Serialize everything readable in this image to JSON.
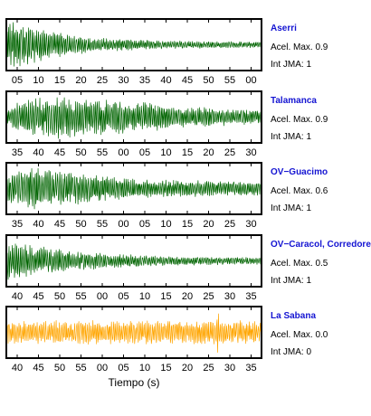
{
  "chart_data": {
    "type": "line",
    "xlabel": "Tiempo (s)",
    "grid": false,
    "panels": [
      {
        "station": "Aserri",
        "accel_text": "Acel. Max. 0.9",
        "int_text": "Int JMA: 1",
        "color": "#006400",
        "tick_labels": [
          "05",
          "10",
          "15",
          "20",
          "25",
          "30",
          "35",
          "40",
          "45",
          "50",
          "55",
          "00"
        ],
        "amplitude_profile": [
          [
            0.0,
            0.95
          ],
          [
            0.08,
            0.9
          ],
          [
            0.18,
            0.55
          ],
          [
            0.35,
            0.3
          ],
          [
            0.6,
            0.18
          ],
          [
            1.0,
            0.12
          ]
        ]
      },
      {
        "station": "Talamanca",
        "accel_text": "Acel. Max. 0.9",
        "int_text": "Int JMA: 1",
        "color": "#006400",
        "tick_labels": [
          "35",
          "40",
          "45",
          "50",
          "55",
          "00",
          "05",
          "10",
          "15",
          "20",
          "25",
          "30"
        ],
        "amplitude_profile": [
          [
            0.0,
            0.35
          ],
          [
            0.05,
            0.7
          ],
          [
            0.2,
            0.9
          ],
          [
            0.45,
            0.7
          ],
          [
            0.7,
            0.45
          ],
          [
            1.0,
            0.3
          ]
        ]
      },
      {
        "station": "OV−Guacimo",
        "accel_text": "Acel. Max. 0.6",
        "int_text": "Int JMA: 1",
        "color": "#006400",
        "tick_labels": [
          "35",
          "40",
          "45",
          "50",
          "55",
          "00",
          "05",
          "10",
          "15",
          "20",
          "25",
          "30"
        ],
        "amplitude_profile": [
          [
            0.0,
            0.6
          ],
          [
            0.1,
            0.9
          ],
          [
            0.3,
            0.65
          ],
          [
            0.5,
            0.4
          ],
          [
            1.0,
            0.3
          ]
        ]
      },
      {
        "station": "OV−Caracol, Corredore",
        "accel_text": "Acel. Max. 0.5",
        "int_text": "Int JMA: 1",
        "color": "#006400",
        "tick_labels": [
          "40",
          "45",
          "50",
          "55",
          "00",
          "05",
          "10",
          "15",
          "20",
          "25",
          "30",
          "35"
        ],
        "amplitude_profile": [
          [
            0.0,
            0.9
          ],
          [
            0.12,
            0.65
          ],
          [
            0.3,
            0.38
          ],
          [
            0.6,
            0.2
          ],
          [
            1.0,
            0.15
          ]
        ]
      },
      {
        "station": "La Sabana",
        "accel_text": "Acel. Max. 0.0",
        "int_text": "Int JMA: 0",
        "color": "#ffa500",
        "tick_labels": [
          "40",
          "45",
          "50",
          "55",
          "00",
          "05",
          "10",
          "15",
          "20",
          "25",
          "30",
          "35"
        ],
        "amplitude_profile": [
          [
            0.0,
            0.5
          ],
          [
            1.0,
            0.5
          ]
        ],
        "spike_at": 0.83
      }
    ]
  }
}
